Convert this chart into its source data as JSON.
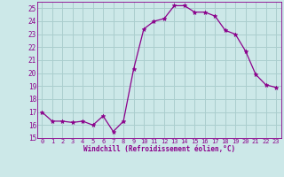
{
  "x": [
    0,
    1,
    2,
    3,
    4,
    5,
    6,
    7,
    8,
    9,
    10,
    11,
    12,
    13,
    14,
    15,
    16,
    17,
    18,
    19,
    20,
    21,
    22,
    23
  ],
  "y": [
    17.0,
    16.3,
    16.3,
    16.2,
    16.3,
    16.0,
    16.7,
    15.5,
    16.3,
    20.3,
    23.4,
    24.0,
    24.2,
    25.2,
    25.2,
    24.7,
    24.7,
    24.4,
    23.3,
    23.0,
    21.7,
    19.9,
    19.1,
    18.9
  ],
  "line_color": "#8B008B",
  "marker": "*",
  "bg_color": "#cce8e8",
  "grid_color": "#aacece",
  "xlabel": "Windchill (Refroidissement éolien,°C)",
  "xlim": [
    -0.5,
    23.5
  ],
  "ylim": [
    15,
    25.5
  ],
  "yticks": [
    15,
    16,
    17,
    18,
    19,
    20,
    21,
    22,
    23,
    24,
    25
  ],
  "xticks": [
    0,
    1,
    2,
    3,
    4,
    5,
    6,
    7,
    8,
    9,
    10,
    11,
    12,
    13,
    14,
    15,
    16,
    17,
    18,
    19,
    20,
    21,
    22,
    23
  ],
  "label_color": "#8B008B",
  "tick_color": "#8B008B",
  "axis_color": "#8B008B"
}
